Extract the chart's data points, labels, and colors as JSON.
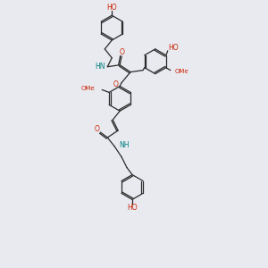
{
  "background_color": "#e8eaf0",
  "bond_color": "#2a2a2a",
  "oxygen_color": "#cc2200",
  "nitrogen_color": "#008080",
  "figsize": [
    3.0,
    3.0
  ],
  "dpi": 100,
  "xlim": [
    0,
    300
  ],
  "ylim": [
    0,
    300
  ]
}
